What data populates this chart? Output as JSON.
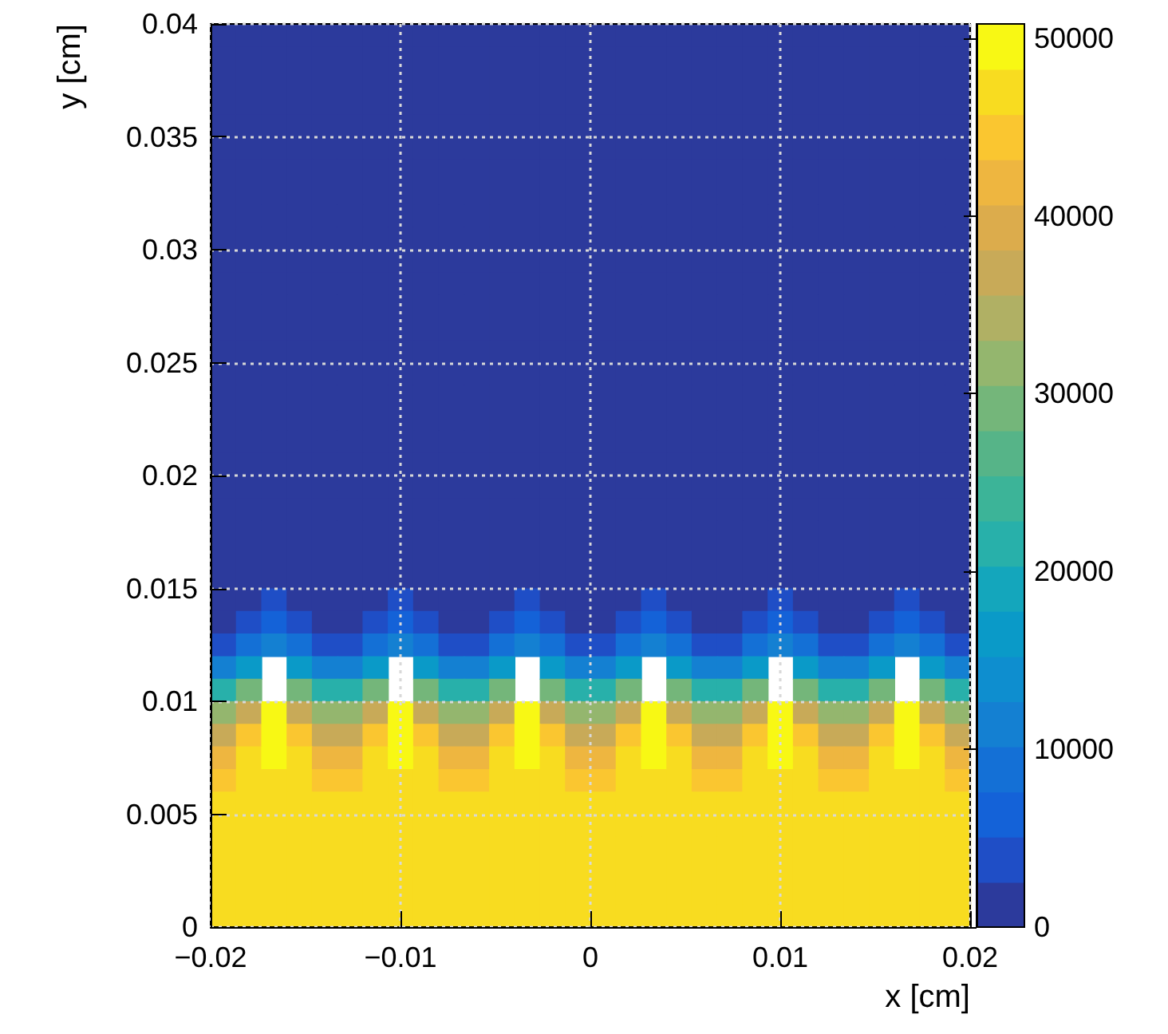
{
  "chart_data": {
    "type": "heatmap",
    "xlabel": "x [cm]",
    "ylabel": "y [cm]",
    "xlim": [
      -0.02,
      0.02
    ],
    "xticks": [
      {
        "value": -0.02,
        "label": "−0.02"
      },
      {
        "value": -0.01,
        "label": "−0.01"
      },
      0,
      0.01,
      0.02
    ],
    "ylim": [
      0,
      0.04
    ],
    "yticks": [
      0,
      0.005,
      0.01,
      0.015,
      0.02,
      0.025,
      0.03,
      0.035,
      0.04
    ],
    "clim": [
      0,
      50800
    ],
    "cticks": [
      0,
      10000,
      20000,
      30000,
      40000,
      50000
    ],
    "grid": true,
    "cells": [
      [
        1000,
        1000,
        1000,
        1000,
        1000,
        1000,
        1000,
        1000,
        1000,
        1000,
        1000,
        1000,
        1000,
        1000,
        1000,
        1000,
        1000,
        1000,
        1000,
        1000,
        1000,
        1000,
        1000,
        1000,
        1000,
        1000,
        1000,
        1000,
        1000,
        1000
      ],
      [
        1000,
        1000,
        1000,
        1000,
        1000,
        1000,
        1000,
        1000,
        1000,
        1000,
        1000,
        1000,
        1000,
        1000,
        1000,
        1000,
        1000,
        1000,
        1000,
        1000,
        1000,
        1000,
        1000,
        1000,
        1000,
        1000,
        1000,
        1000,
        1000,
        1000
      ],
      [
        1000,
        1000,
        1000,
        1000,
        1000,
        1000,
        1000,
        1000,
        1000,
        1000,
        1000,
        1000,
        1000,
        1000,
        1000,
        1000,
        1000,
        1000,
        1000,
        1000,
        1000,
        1000,
        1000,
        1000,
        1000,
        1000,
        1000,
        1000,
        1000,
        1000
      ],
      [
        1000,
        1000,
        1000,
        1000,
        1000,
        1000,
        1000,
        1000,
        1000,
        1000,
        1000,
        1000,
        1000,
        1000,
        1000,
        1000,
        1000,
        1000,
        1000,
        1000,
        1000,
        1000,
        1000,
        1000,
        1000,
        1000,
        1000,
        1000,
        1000,
        1000
      ],
      [
        1000,
        1000,
        1000,
        1000,
        1000,
        1000,
        1000,
        1000,
        1000,
        1000,
        1000,
        1000,
        1000,
        1000,
        1000,
        1000,
        1000,
        1000,
        1000,
        1000,
        1000,
        1000,
        1000,
        1000,
        1000,
        1000,
        1000,
        1000,
        1000,
        1000
      ],
      [
        1000,
        1000,
        1000,
        1000,
        1000,
        1000,
        1000,
        1000,
        1000,
        1000,
        1000,
        1000,
        1000,
        1000,
        1000,
        1000,
        1000,
        1000,
        1000,
        1000,
        1000,
        1000,
        1000,
        1000,
        1000,
        1000,
        1000,
        1000,
        1000,
        1000
      ],
      [
        1000,
        1000,
        1000,
        1000,
        1000,
        1000,
        1000,
        1000,
        1000,
        1000,
        1000,
        1000,
        1000,
        1000,
        1000,
        1000,
        1000,
        1000,
        1000,
        1000,
        1000,
        1000,
        1000,
        1000,
        1000,
        1000,
        1000,
        1000,
        1000,
        1000
      ],
      [
        1000,
        1000,
        1000,
        1000,
        1000,
        1000,
        1000,
        1000,
        1000,
        1000,
        1000,
        1000,
        1000,
        1000,
        1000,
        1000,
        1000,
        1000,
        1000,
        1000,
        1000,
        1000,
        1000,
        1000,
        1000,
        1000,
        1000,
        1000,
        1000,
        1000
      ],
      [
        1000,
        1000,
        1000,
        1000,
        1000,
        1000,
        1000,
        1000,
        1000,
        1000,
        1000,
        1000,
        1000,
        1000,
        1000,
        1000,
        1000,
        1000,
        1000,
        1000,
        1000,
        1000,
        1000,
        1000,
        1000,
        1000,
        1000,
        1000,
        1000,
        1000
      ],
      [
        1000,
        1000,
        1000,
        1000,
        1000,
        1000,
        1000,
        1000,
        1000,
        1000,
        1000,
        1000,
        1000,
        1000,
        1000,
        1000,
        1000,
        1000,
        1000,
        1000,
        1000,
        1000,
        1000,
        1000,
        1000,
        1000,
        1000,
        1000,
        1000,
        1000
      ],
      [
        1000,
        1000,
        1000,
        1000,
        1000,
        1000,
        1000,
        1000,
        1000,
        1000,
        1000,
        1000,
        1000,
        1000,
        1000,
        1000,
        1000,
        1000,
        1000,
        1000,
        1000,
        1000,
        1000,
        1000,
        1000,
        1000,
        1000,
        1000,
        1000,
        1000
      ],
      [
        1000,
        1000,
        1000,
        1000,
        1000,
        1000,
        1000,
        1000,
        1000,
        1000,
        1000,
        1000,
        1000,
        1000,
        1000,
        1000,
        1000,
        1000,
        1000,
        1000,
        1000,
        1000,
        1000,
        1000,
        1000,
        1000,
        1000,
        1000,
        1000,
        1000
      ],
      [
        1000,
        1000,
        1000,
        1000,
        1000,
        1000,
        1000,
        1000,
        1000,
        1000,
        1000,
        1000,
        1000,
        1000,
        1000,
        1000,
        1000,
        1000,
        1000,
        1000,
        1000,
        1000,
        1000,
        1000,
        1000,
        1000,
        1000,
        1000,
        1000,
        1000
      ],
      [
        1000,
        1000,
        1000,
        1000,
        1000,
        1000,
        1000,
        1000,
        1000,
        1000,
        1000,
        1000,
        1000,
        1000,
        1000,
        1000,
        1000,
        1000,
        1000,
        1000,
        1000,
        1000,
        1000,
        1000,
        1000,
        1000,
        1000,
        1000,
        1000,
        1000
      ],
      [
        1000,
        1000,
        1000,
        1000,
        1000,
        1000,
        1000,
        1000,
        1000,
        1000,
        1000,
        1000,
        1000,
        1000,
        1000,
        1000,
        1000,
        1000,
        1000,
        1000,
        1000,
        1000,
        1000,
        1000,
        1000,
        1000,
        1000,
        1000,
        1000,
        1000
      ],
      [
        1000,
        1000,
        1000,
        1000,
        1000,
        1000,
        1000,
        1000,
        1000,
        1000,
        1000,
        1000,
        1000,
        1000,
        1000,
        1000,
        1000,
        1000,
        1000,
        1000,
        1000,
        1000,
        1000,
        1000,
        1000,
        1000,
        1000,
        1000,
        1000,
        1000
      ],
      [
        1000,
        1000,
        1000,
        1000,
        1000,
        1000,
        1000,
        1000,
        1000,
        1000,
        1000,
        1000,
        1000,
        1000,
        1000,
        1000,
        1000,
        1000,
        1000,
        1000,
        1000,
        1000,
        1000,
        1000,
        1000,
        1000,
        1000,
        1000,
        1000,
        1000
      ],
      [
        1000,
        1000,
        1000,
        1000,
        1000,
        1000,
        1000,
        1000,
        1000,
        1000,
        1000,
        1000,
        1000,
        1000,
        1000,
        1000,
        1000,
        1000,
        1000,
        1000,
        1000,
        1000,
        1000,
        1000,
        1000,
        1000,
        1000,
        1000,
        1000,
        1000
      ],
      [
        1000,
        1000,
        1000,
        1000,
        1000,
        1000,
        1000,
        1000,
        1000,
        1000,
        1000,
        1000,
        1000,
        1000,
        1000,
        1000,
        1000,
        1000,
        1000,
        1000,
        1000,
        1000,
        1000,
        1000,
        1000,
        1000,
        1000,
        1000,
        1000,
        1000
      ],
      [
        1000,
        1000,
        1000,
        1000,
        1000,
        1000,
        1000,
        1000,
        1000,
        1000,
        1000,
        1000,
        1000,
        1000,
        1000,
        1000,
        1000,
        1000,
        1000,
        1000,
        1000,
        1000,
        1000,
        1000,
        1000,
        1000,
        1000,
        1000,
        1000,
        1000
      ],
      [
        1000,
        1000,
        1000,
        1000,
        1000,
        1000,
        1000,
        1000,
        1000,
        1000,
        1000,
        1000,
        1000,
        1000,
        1000,
        1000,
        1000,
        1000,
        1000,
        1000,
        1000,
        1000,
        1000,
        1000,
        1000,
        1000,
        1000,
        1000,
        1000,
        1000
      ],
      [
        1000,
        1000,
        1000,
        1000,
        1000,
        1000,
        1000,
        1000,
        1000,
        1000,
        1000,
        1000,
        1000,
        1000,
        1000,
        1000,
        1000,
        1000,
        1000,
        1000,
        1000,
        1000,
        1000,
        1000,
        1000,
        1000,
        1000,
        1000,
        1000,
        1000
      ],
      [
        1000,
        1000,
        1000,
        1000,
        1000,
        1000,
        1000,
        1000,
        1000,
        1000,
        1000,
        1000,
        1000,
        1000,
        1000,
        1000,
        1000,
        1000,
        1000,
        1000,
        1000,
        1000,
        1000,
        1000,
        1000,
        1000,
        1000,
        1000,
        1000,
        1000
      ],
      [
        1000,
        1000,
        1000,
        1000,
        1000,
        1000,
        1000,
        1000,
        1000,
        1000,
        1000,
        1000,
        1000,
        1000,
        1000,
        1000,
        1000,
        1000,
        1000,
        1000,
        1000,
        1000,
        1000,
        1000,
        1000,
        1000,
        1000,
        1000,
        1000,
        1000
      ],
      [
        1000,
        1000,
        1000,
        1000,
        1000,
        1000,
        1000,
        1000,
        1000,
        1000,
        1000,
        1000,
        1000,
        1000,
        1000,
        1000,
        1000,
        1000,
        1000,
        1000,
        1000,
        1000,
        1000,
        1000,
        1000,
        1000,
        1000,
        1000,
        1000,
        1000
      ],
      [
        1000,
        1500,
        3000,
        1500,
        1000,
        1000,
        1500,
        3000,
        1500,
        1000,
        1000,
        1500,
        3000,
        1500,
        1000,
        1000,
        1500,
        3000,
        1500,
        1000,
        1000,
        1500,
        3000,
        1500,
        1000,
        1000,
        1500,
        3000,
        1500,
        1000
      ],
      [
        1000,
        4000,
        7000,
        4000,
        1000,
        1000,
        4000,
        7000,
        4000,
        1000,
        1000,
        4000,
        7000,
        4000,
        1000,
        1000,
        4000,
        7000,
        4000,
        1000,
        1000,
        4000,
        7000,
        4000,
        1000,
        1000,
        4000,
        7000,
        4000,
        1000
      ],
      [
        3000,
        9000,
        12000,
        9000,
        3000,
        3000,
        9000,
        12000,
        9000,
        3000,
        3000,
        9000,
        12000,
        9000,
        3000,
        3000,
        9000,
        12000,
        9000,
        3000,
        3000,
        9000,
        12000,
        9000,
        3000,
        3000,
        9000,
        12000,
        9000,
        3000
      ],
      [
        12000,
        16000,
        null,
        16000,
        12000,
        12000,
        16000,
        null,
        16000,
        12000,
        12000,
        16000,
        null,
        16000,
        12000,
        12000,
        16000,
        null,
        16000,
        12000,
        12000,
        16000,
        null,
        16000,
        12000,
        12000,
        16000,
        null,
        16000,
        12000
      ],
      [
        22000,
        28000,
        null,
        28000,
        22000,
        22000,
        28000,
        null,
        28000,
        22000,
        22000,
        28000,
        null,
        28000,
        22000,
        22000,
        28000,
        null,
        28000,
        22000,
        22000,
        28000,
        null,
        28000,
        22000,
        22000,
        28000,
        null,
        28000,
        22000
      ],
      [
        31000,
        38000,
        50500,
        38000,
        31000,
        31000,
        38000,
        50500,
        38000,
        31000,
        31000,
        38000,
        50500,
        38000,
        31000,
        31000,
        38000,
        50500,
        38000,
        31000,
        31000,
        38000,
        50500,
        38000,
        31000,
        31000,
        38000,
        50500,
        38000,
        31000
      ],
      [
        38000,
        44000,
        50000,
        44000,
        38000,
        38000,
        44000,
        50000,
        44000,
        38000,
        38000,
        44000,
        50000,
        44000,
        38000,
        38000,
        44000,
        50000,
        44000,
        38000,
        38000,
        44000,
        50000,
        44000,
        38000,
        38000,
        44000,
        50000,
        44000,
        38000
      ],
      [
        43000,
        46000,
        48500,
        46000,
        43000,
        43000,
        46000,
        48500,
        46000,
        43000,
        43000,
        46000,
        48500,
        46000,
        43000,
        43000,
        46000,
        48500,
        46000,
        43000,
        43000,
        46000,
        48500,
        46000,
        43000,
        43000,
        46000,
        48500,
        46000,
        43000
      ],
      [
        45000,
        47000,
        47500,
        47000,
        45000,
        45000,
        47000,
        47500,
        47000,
        45000,
        45000,
        47000,
        47500,
        47000,
        45000,
        45000,
        47000,
        47500,
        47000,
        45000,
        45000,
        47000,
        47500,
        47000,
        45000,
        45000,
        47000,
        47500,
        47000,
        45000
      ],
      [
        47000,
        47000,
        47000,
        47000,
        47000,
        47000,
        47000,
        47000,
        47000,
        47000,
        47000,
        47000,
        47000,
        47000,
        47000,
        47000,
        47000,
        47000,
        47000,
        47000,
        47000,
        47000,
        47000,
        47000,
        47000,
        47000,
        47000,
        47000,
        47000,
        47000
      ],
      [
        47000,
        47000,
        47000,
        47000,
        47000,
        47000,
        47000,
        47000,
        47000,
        47000,
        47000,
        47000,
        47000,
        47000,
        47000,
        47000,
        47000,
        47000,
        47000,
        47000,
        47000,
        47000,
        47000,
        47000,
        47000,
        47000,
        47000,
        47000,
        47000,
        47000
      ],
      [
        47000,
        47000,
        47000,
        47000,
        47000,
        47000,
        47000,
        47000,
        47000,
        47000,
        47000,
        47000,
        47000,
        47000,
        47000,
        47000,
        47000,
        47000,
        47000,
        47000,
        47000,
        47000,
        47000,
        47000,
        47000,
        47000,
        47000,
        47000,
        47000,
        47000
      ],
      [
        47000,
        47000,
        47000,
        47000,
        47000,
        47000,
        47000,
        47000,
        47000,
        47000,
        47000,
        47000,
        47000,
        47000,
        47000,
        47000,
        47000,
        47000,
        47000,
        47000,
        47000,
        47000,
        47000,
        47000,
        47000,
        47000,
        47000,
        47000,
        47000,
        47000
      ],
      [
        47000,
        47000,
        47000,
        47000,
        47000,
        47000,
        47000,
        47000,
        47000,
        47000,
        47000,
        47000,
        47000,
        47000,
        47000,
        47000,
        47000,
        47000,
        47000,
        47000,
        47000,
        47000,
        47000,
        47000,
        47000,
        47000,
        47000,
        47000,
        47000,
        47000
      ],
      [
        47000,
        47000,
        47000,
        47000,
        47000,
        47000,
        47000,
        47000,
        47000,
        47000,
        47000,
        47000,
        47000,
        47000,
        47000,
        47000,
        47000,
        47000,
        47000,
        47000,
        47000,
        47000,
        47000,
        47000,
        47000,
        47000,
        47000,
        47000,
        47000,
        47000
      ]
    ]
  }
}
